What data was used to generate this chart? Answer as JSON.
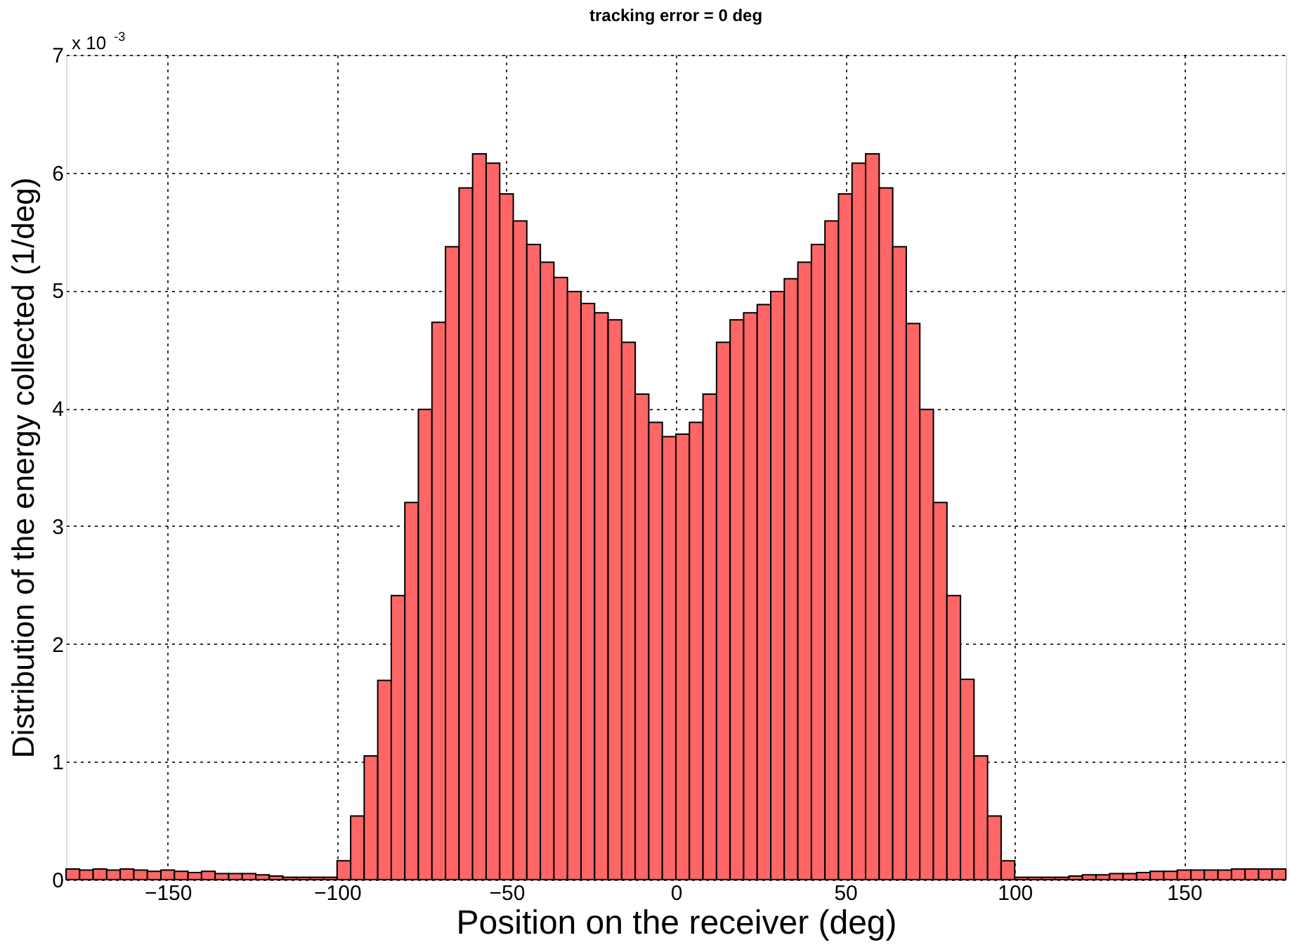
{
  "chart_data": {
    "type": "histogram",
    "title": "tracking error = 0 deg",
    "xlabel": "Position on the receiver (deg)",
    "ylabel": "Distribution of the energy collected (1/deg)",
    "annotations": [
      "x 10$^{-3}$"
    ],
    "bins": [
      -180,
      -176,
      -172,
      -168,
      -164,
      -160,
      -156,
      -152,
      -148,
      -144,
      -140,
      -136,
      -132,
      -128,
      -124,
      -120,
      -116,
      -112,
      -108,
      -104,
      -100,
      -96,
      -92,
      -88,
      -84,
      -80,
      -76,
      -72,
      -68,
      -64,
      -60,
      -56,
      -52,
      -48,
      -44,
      -40,
      -36,
      -32,
      -28,
      -24,
      -20,
      -16,
      -12,
      -8,
      -4,
      0,
      4,
      8,
      12,
      16,
      20,
      24,
      28,
      32,
      36,
      40,
      44,
      48,
      52,
      56,
      60,
      64,
      68,
      72,
      76,
      80,
      84,
      88,
      92,
      96,
      100,
      104,
      108,
      112,
      116,
      120,
      124,
      128,
      132,
      136,
      140,
      144,
      148,
      152,
      156,
      160,
      164,
      168,
      172,
      176,
      180
    ],
    "values": [
      0.09,
      0.08,
      0.09,
      0.08,
      0.09,
      0.08,
      0.07,
      0.08,
      0.07,
      0.06,
      0.07,
      0.05,
      0.05,
      0.05,
      0.04,
      0.03,
      0.02,
      0.02,
      0.02,
      0.02,
      0.16,
      0.54,
      1.05,
      1.69,
      2.41,
      3.2,
      3.99,
      4.73,
      5.37,
      5.87,
      6.16,
      6.08,
      5.82,
      5.59,
      5.39,
      5.24,
      5.11,
      4.99,
      4.89,
      4.81,
      4.75,
      4.56,
      4.12,
      3.88,
      3.76,
      3.78,
      3.88,
      4.12,
      4.56,
      4.75,
      4.81,
      4.88,
      4.99,
      5.1,
      5.24,
      5.39,
      5.59,
      5.82,
      6.08,
      6.16,
      5.87,
      5.37,
      4.72,
      3.99,
      3.2,
      2.41,
      1.7,
      1.05,
      0.54,
      0.16,
      0.02,
      0.02,
      0.02,
      0.02,
      0.03,
      0.04,
      0.04,
      0.05,
      0.05,
      0.06,
      0.07,
      0.07,
      0.08,
      0.08,
      0.08,
      0.08,
      0.09,
      0.09,
      0.09,
      0.09
    ],
    "color": "#ff6666",
    "xlim": [
      -180,
      180
    ],
    "xticks": [
      -150,
      -100,
      -50,
      0,
      50,
      100,
      150
    ],
    "ylim": [
      0,
      7
    ],
    "yticks": [
      0,
      1,
      2,
      3,
      4,
      5,
      6,
      7
    ],
    "grid": true
  }
}
